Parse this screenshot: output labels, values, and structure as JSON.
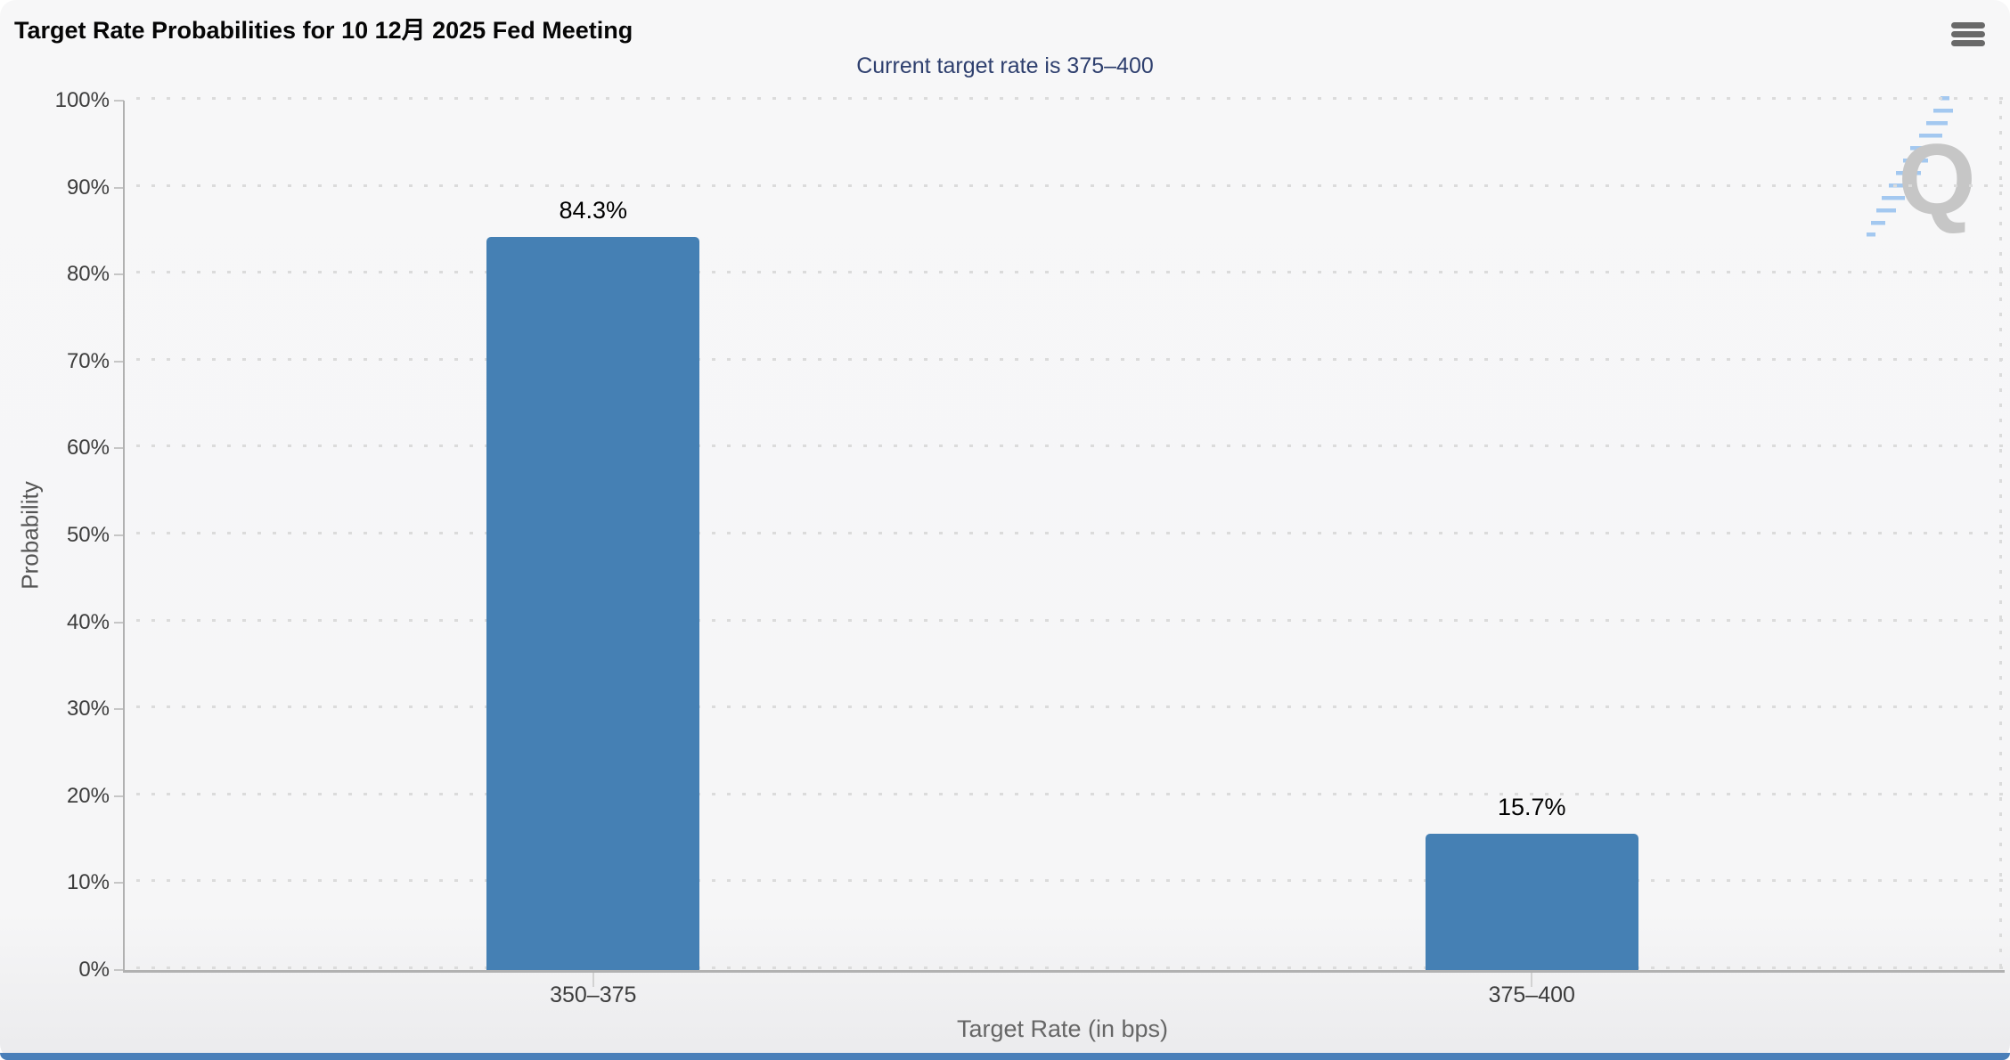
{
  "header": {
    "title": "Target Rate Probabilities for 10 12月 2025 Fed Meeting",
    "subtitle": "Current target rate is 375–400"
  },
  "menu": {
    "icon": "hamburger-icon"
  },
  "watermark": {
    "letter": "Q"
  },
  "colors": {
    "bar": "#4580b4",
    "subtitle_text": "#2e3f6e",
    "footer_bar": "#4a7fb9",
    "watermark_gray": "#c6c6c6",
    "watermark_blue": "#a3c8f0"
  },
  "chart_data": {
    "type": "bar",
    "title": "Target Rate Probabilities for 10 12月 2025 Fed Meeting",
    "subtitle": "Current target rate is 375–400",
    "categories": [
      "350–375",
      "375–400"
    ],
    "values": [
      84.3,
      15.7
    ],
    "value_labels": [
      "84.3%",
      "15.7%"
    ],
    "xlabel": "Target Rate (in bps)",
    "ylabel": "Probability",
    "ylim": [
      0,
      100
    ],
    "ytick_step": 10,
    "ytick_labels": [
      "0%",
      "10%",
      "20%",
      "30%",
      "40%",
      "50%",
      "60%",
      "70%",
      "80%",
      "90%",
      "100%"
    ],
    "grid": "dotted horizontal, right edge dotted vertical",
    "legend": "none",
    "bar_color": "#4580b4"
  }
}
